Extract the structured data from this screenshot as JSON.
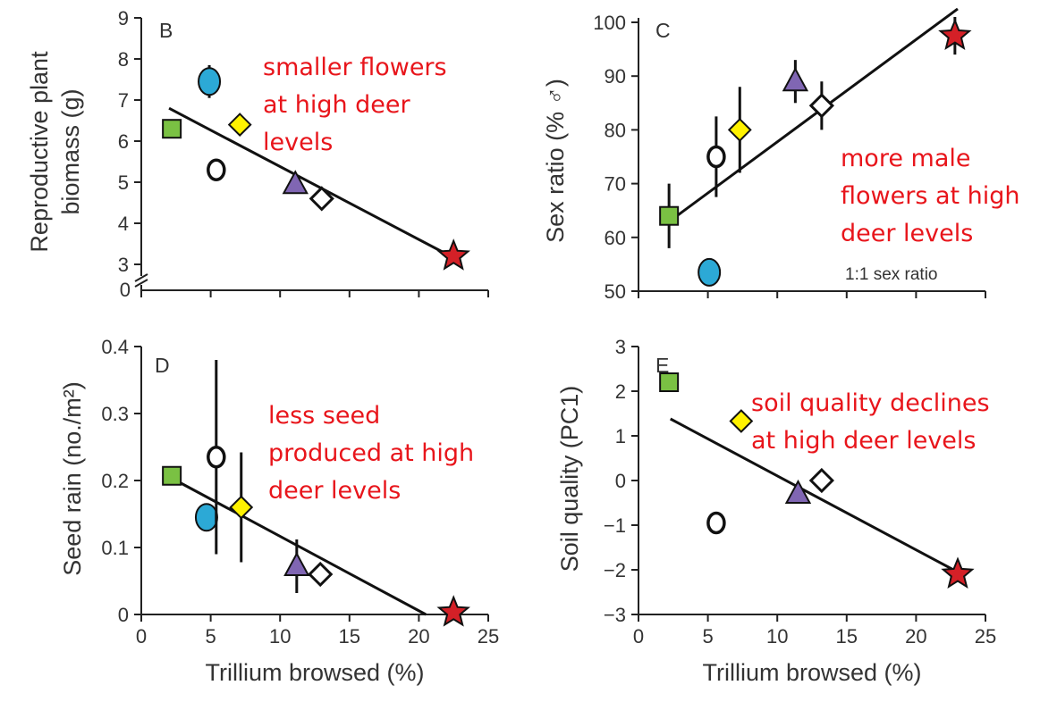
{
  "colors": {
    "green": "#7ac143",
    "blue": "#2ca9d6",
    "yellow": "#fff200",
    "purple": "#8066b3",
    "red": "#d42027",
    "annotation": "#e8151b"
  },
  "site_markers": [
    "square",
    "ellipse",
    "diamond",
    "circle-open",
    "triangle",
    "diamond-open",
    "star"
  ],
  "xlabel_shared": "Trillium browsed (%)",
  "chart_data": [
    {
      "panel": "B",
      "type": "scatter",
      "xlabel": "",
      "ylabel_lines": [
        "Reproductive plant",
        "biomass (g)"
      ],
      "xlim": [
        0,
        25
      ],
      "ylim": [
        3,
        9
      ],
      "y_axis_break": true,
      "xticks": [
        "0",
        "5",
        "10",
        "15",
        "20",
        "25"
      ],
      "yticks": [
        "3",
        "4",
        "5",
        "6",
        "7",
        "8",
        "9"
      ],
      "y_break_label": "0",
      "points": [
        {
          "marker": "square",
          "color": "#7ac143",
          "x": 2.2,
          "y": 6.3
        },
        {
          "marker": "ellipse",
          "color": "#2ca9d6",
          "x": 4.9,
          "y": 7.45,
          "err": 0.4
        },
        {
          "marker": "diamond",
          "color": "#fff200",
          "x": 7.1,
          "y": 6.4
        },
        {
          "marker": "circle-open",
          "color": "#ffffff",
          "x": 5.4,
          "y": 5.3
        },
        {
          "marker": "triangle",
          "color": "#8066b3",
          "x": 11.1,
          "y": 4.95
        },
        {
          "marker": "diamond-open",
          "color": "#ffffff",
          "x": 13.0,
          "y": 4.6
        },
        {
          "marker": "star",
          "color": "#d42027",
          "x": 22.5,
          "y": 3.2
        }
      ],
      "fit": {
        "x": [
          2.0,
          22.0
        ],
        "y": [
          6.8,
          3.25
        ]
      },
      "annotation_lines": [
        "smaller flowers",
        "at high deer",
        "levels"
      ]
    },
    {
      "panel": "C",
      "type": "scatter",
      "xlabel": "",
      "ylabel": "Sex ratio (% ♂)",
      "xlim": [
        0,
        25
      ],
      "ylim": [
        50,
        100
      ],
      "xticks": [
        "0",
        "5",
        "10",
        "15",
        "20",
        "25"
      ],
      "yticks": [
        "50",
        "60",
        "70",
        "80",
        "90",
        "100"
      ],
      "reference_label": "1:1 sex ratio",
      "points": [
        {
          "marker": "square",
          "color": "#7ac143",
          "x": 2.2,
          "y": 64,
          "err": 6
        },
        {
          "marker": "ellipse",
          "color": "#2ca9d6",
          "x": 5.1,
          "y": 53.5
        },
        {
          "marker": "circle-open",
          "color": "#ffffff",
          "x": 5.6,
          "y": 75,
          "err": 7.5
        },
        {
          "marker": "diamond",
          "color": "#fff200",
          "x": 7.3,
          "y": 80,
          "err": 8
        },
        {
          "marker": "triangle",
          "color": "#8066b3",
          "x": 11.3,
          "y": 89,
          "err": 4
        },
        {
          "marker": "diamond-open",
          "color": "#ffffff",
          "x": 13.2,
          "y": 84.5,
          "err": 4.5
        },
        {
          "marker": "star",
          "color": "#d42027",
          "x": 22.8,
          "y": 97.5,
          "err": 3.5
        }
      ],
      "fit": {
        "x": [
          2.5,
          23.0
        ],
        "y": [
          63.5,
          102.5
        ]
      },
      "annotation_lines": [
        "more male",
        "flowers at high",
        "deer levels"
      ]
    },
    {
      "panel": "D",
      "type": "scatter",
      "xlabel": "Trillium browsed (%)",
      "ylabel": "Seed rain (no./m²)",
      "xlim": [
        0,
        25
      ],
      "ylim": [
        0,
        0.4
      ],
      "xticks": [
        "0",
        "5",
        "10",
        "15",
        "20",
        "25"
      ],
      "yticks": [
        "0",
        "0.1",
        "0.2",
        "0.3",
        "0.4"
      ],
      "points": [
        {
          "marker": "square",
          "color": "#7ac143",
          "x": 2.2,
          "y": 0.207
        },
        {
          "marker": "ellipse",
          "color": "#2ca9d6",
          "x": 4.7,
          "y": 0.145
        },
        {
          "marker": "circle-open",
          "color": "#ffffff",
          "x": 5.4,
          "y": 0.235,
          "err": 0.145
        },
        {
          "marker": "diamond",
          "color": "#fff200",
          "x": 7.2,
          "y": 0.16,
          "err": 0.082
        },
        {
          "marker": "triangle",
          "color": "#8066b3",
          "x": 11.2,
          "y": 0.072,
          "err": 0.04
        },
        {
          "marker": "diamond-open",
          "color": "#ffffff",
          "x": 12.9,
          "y": 0.06
        },
        {
          "marker": "star",
          "color": "#d42027",
          "x": 22.5,
          "y": 0.003
        }
      ],
      "fit": {
        "x": [
          2.5,
          20.5
        ],
        "y": [
          0.2,
          0.0
        ]
      },
      "annotation_lines": [
        "less seed",
        "produced at high",
        "deer levels"
      ]
    },
    {
      "panel": "E",
      "type": "scatter",
      "xlabel": "Trillium browsed (%)",
      "ylabel": "Soil quality (PC1)",
      "xlim": [
        0,
        25
      ],
      "ylim": [
        -3,
        3
      ],
      "xticks": [
        "0",
        "5",
        "10",
        "15",
        "20",
        "25"
      ],
      "yticks": [
        "−3",
        "−2",
        "−1",
        "0",
        "1",
        "2",
        "3"
      ],
      "points": [
        {
          "marker": "square",
          "color": "#7ac143",
          "x": 2.2,
          "y": 2.2
        },
        {
          "marker": "diamond",
          "color": "#fff200",
          "x": 7.4,
          "y": 1.33
        },
        {
          "marker": "circle-open",
          "color": "#ffffff",
          "x": 5.6,
          "y": -0.95
        },
        {
          "marker": "triangle",
          "color": "#8066b3",
          "x": 11.5,
          "y": -0.3
        },
        {
          "marker": "diamond-open",
          "color": "#ffffff",
          "x": 13.2,
          "y": 0.0
        },
        {
          "marker": "star",
          "color": "#d42027",
          "x": 23.0,
          "y": -2.1
        }
      ],
      "fit": {
        "x": [
          2.3,
          23.0
        ],
        "y": [
          1.38,
          -2.05
        ]
      },
      "annotation_lines": [
        "soil quality declines",
        "at high deer levels"
      ]
    }
  ]
}
